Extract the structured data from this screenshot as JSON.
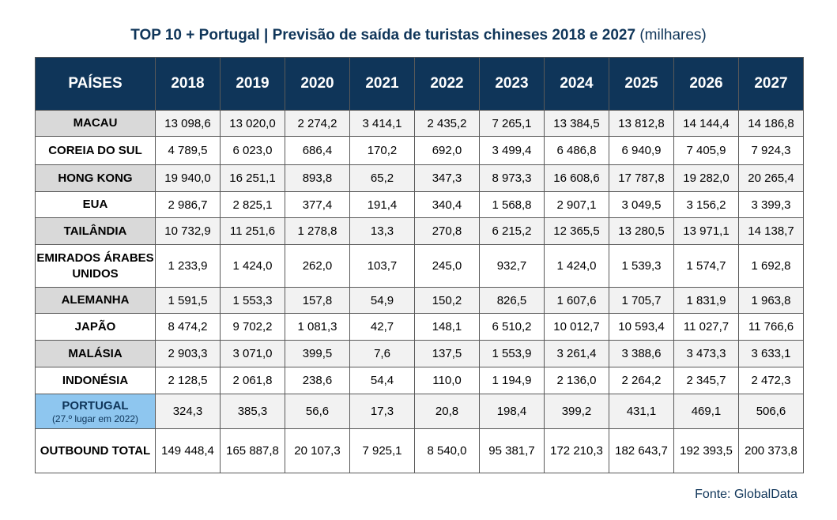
{
  "title_main": "TOP 10 + Portugal | Previsão de saída de turistas chineses 2018 e 2027",
  "title_unit": "(milhares)",
  "source": "Fonte: GlobalData",
  "chart_data": {
    "type": "table",
    "header_label": "PAÍSES",
    "columns": [
      "2018",
      "2019",
      "2020",
      "2021",
      "2022",
      "2023",
      "2024",
      "2025",
      "2026",
      "2027"
    ],
    "rows": [
      {
        "country": "MACAU",
        "values": [
          "13 098,6",
          "13 020,0",
          "2 274,2",
          "3 414,1",
          "2 435,2",
          "7 265,1",
          "13 384,5",
          "13 812,8",
          "14 144,4",
          "14 186,8"
        ]
      },
      {
        "country": "COREIA DO SUL",
        "values": [
          "4 789,5",
          "6 023,0",
          "686,4",
          "170,2",
          "692,0",
          "3 499,4",
          "6 486,8",
          "6 940,9",
          "7 405,9",
          "7 924,3"
        ]
      },
      {
        "country": "HONG KONG",
        "values": [
          "19 940,0",
          "16 251,1",
          "893,8",
          "65,2",
          "347,3",
          "8 973,3",
          "16 608,6",
          "17 787,8",
          "19 282,0",
          "20 265,4"
        ]
      },
      {
        "country": "EUA",
        "values": [
          "2 986,7",
          "2 825,1",
          "377,4",
          "191,4",
          "340,4",
          "1 568,8",
          "2 907,1",
          "3 049,5",
          "3 156,2",
          "3 399,3"
        ]
      },
      {
        "country": "TAILÂNDIA",
        "values": [
          "10 732,9",
          "11 251,6",
          "1 278,8",
          "13,3",
          "270,8",
          "6 215,2",
          "12 365,5",
          "13 280,5",
          "13 971,1",
          "14 138,7"
        ]
      },
      {
        "country": "EMIRADOS ÁRABES UNIDOS",
        "values": [
          "1 233,9",
          "1 424,0",
          "262,0",
          "103,7",
          "245,0",
          "932,7",
          "1 424,0",
          "1 539,3",
          "1 574,7",
          "1 692,8"
        ]
      },
      {
        "country": "ALEMANHA",
        "values": [
          "1 591,5",
          "1 553,3",
          "157,8",
          "54,9",
          "150,2",
          "826,5",
          "1 607,6",
          "1 705,7",
          "1 831,9",
          "1 963,8"
        ]
      },
      {
        "country": "JAPÃO",
        "values": [
          "8 474,2",
          "9 702,2",
          "1 081,3",
          "42,7",
          "148,1",
          "6 510,2",
          "10 012,7",
          "10 593,4",
          "11 027,7",
          "11 766,6"
        ]
      },
      {
        "country": "MALÁSIA",
        "values": [
          "2 903,3",
          "3 071,0",
          "399,5",
          "7,6",
          "137,5",
          "1 553,9",
          "3 261,4",
          "3 388,6",
          "3 473,3",
          "3 633,1"
        ]
      },
      {
        "country": "INDONÉSIA",
        "values": [
          "2 128,5",
          "2 061,8",
          "238,6",
          "54,4",
          "110,0",
          "1 194,9",
          "2 136,0",
          "2 264,2",
          "2 345,7",
          "2 472,3"
        ]
      },
      {
        "country": "PORTUGAL",
        "note": "(27.º lugar em 2022)",
        "values": [
          "324,3",
          "385,3",
          "56,6",
          "17,3",
          "20,8",
          "198,4",
          "399,2",
          "431,1",
          "469,1",
          "506,6"
        ]
      },
      {
        "country": "OUTBOUND TOTAL",
        "values": [
          "149 448,4",
          "165 887,8",
          "20 107,3",
          "7 925,1",
          "8 540,0",
          "95 381,7",
          "172 210,3",
          "182 643,7",
          "192 393,5",
          "200 373,8"
        ]
      }
    ],
    "highlight_color": "#8ec6ef",
    "header_color": "#0f3559"
  }
}
